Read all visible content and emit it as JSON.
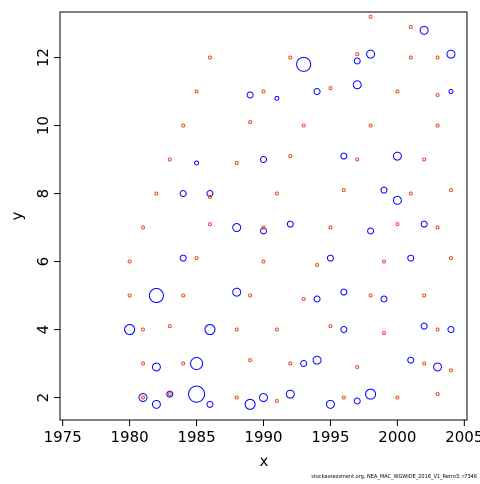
{
  "chart_data": {
    "type": "scatter",
    "xlabel": "x",
    "ylabel": "y",
    "footer": "stockassessment.org, NEA_MAC_WGWIDE_2016_V1_Retro3, r7346",
    "xlim": [
      1974.8,
      2005.2
    ],
    "ylim": [
      1.34,
      13.34
    ],
    "xticks": [
      1975,
      1980,
      1985,
      1990,
      1995,
      2000,
      2005
    ],
    "yticks": [
      2,
      4,
      6,
      8,
      10,
      12
    ],
    "series": [
      {
        "color": "#0000ff",
        "x": [
          1980,
          1981,
          1982,
          1982,
          1982,
          1983,
          1984,
          1984,
          1985,
          1985,
          1986,
          1986,
          1986,
          1988,
          1988,
          1989,
          1989,
          1990,
          1990,
          1991,
          1992,
          1993,
          1993,
          1994,
          1994,
          1995,
          1995,
          1996,
          1996,
          1997,
          1997,
          1998,
          1998,
          1998,
          1999,
          1999,
          2000,
          2000,
          2001,
          2001,
          2002,
          2002,
          2003,
          2004,
          2004,
          2004,
          1997,
          1990,
          1992,
          1985,
          1994,
          1996,
          2002
        ],
        "values": [
          4,
          2,
          5,
          1.8,
          2.9,
          2.1,
          6.1,
          8,
          2.1,
          3,
          4,
          1.8,
          8,
          5.1,
          7,
          1.8,
          10.9,
          9,
          2,
          10.8,
          2.1,
          11.8,
          3,
          3.1,
          11,
          1.8,
          6.1,
          4,
          9.1,
          11.9,
          11.2,
          12.1,
          2.1,
          6.9,
          8.1,
          4.9,
          9.1,
          7.8,
          6.1,
          3.1,
          12.8,
          7.1,
          2.9,
          12.1,
          4,
          11,
          1.9,
          6.9,
          7.1,
          8.9,
          4.9,
          5.1,
          4.1
        ],
        "sizes": [
          5,
          4,
          7,
          4,
          4,
          3,
          3,
          3,
          8,
          6,
          5,
          3,
          3,
          4,
          4,
          5,
          3,
          3,
          4,
          2,
          4,
          7,
          3,
          4,
          3,
          4,
          3,
          3,
          3,
          3,
          4,
          4,
          5,
          3,
          3,
          3,
          4,
          4,
          3,
          3,
          4,
          3,
          4,
          4,
          3,
          2,
          3,
          3,
          3,
          2,
          3,
          3,
          3
        ]
      },
      {
        "color": "#e8502a",
        "x": [
          1981,
          1983,
          1988,
          1991,
          1996,
          2000,
          2003,
          1981,
          1984,
          1989,
          1992,
          1997,
          2002,
          2004,
          1981,
          1983,
          1988,
          1991,
          1995,
          1999,
          2003,
          1980,
          1984,
          1989,
          1993,
          1998,
          2002,
          1980,
          1985,
          1990,
          1994,
          1999,
          2004,
          1981,
          1986,
          1990,
          1995,
          2000,
          2003,
          1982,
          1986,
          1991,
          1996,
          2001,
          2004,
          1983,
          1988,
          1992,
          1997,
          2002,
          1984,
          1989,
          1993,
          1998,
          2003,
          1985,
          1990,
          1995,
          2000,
          2003,
          1986,
          1992,
          1997,
          2001,
          2003,
          1998,
          2001
        ],
        "values": [
          2,
          2.1,
          2,
          1.9,
          2,
          2,
          2.1,
          3,
          3,
          3.1,
          3,
          2.9,
          3,
          2.8,
          4,
          4.1,
          4,
          4,
          4.1,
          3.9,
          4,
          5,
          5,
          5,
          4.9,
          5,
          5,
          6,
          6.1,
          6,
          5.9,
          6,
          6.1,
          7,
          7.1,
          7,
          7,
          7.1,
          7,
          8,
          7.9,
          8,
          8.1,
          8,
          8.1,
          9,
          8.9,
          9.1,
          9,
          9,
          10,
          10.1,
          10,
          10,
          10,
          11,
          11,
          11.1,
          11,
          10.9,
          12,
          12,
          12.1,
          12,
          12,
          13.2,
          12.9
        ],
        "sizes": [
          1.5,
          1.5,
          1.5,
          1.5,
          1.5,
          1.5,
          1.5,
          1.5,
          1.5,
          1.5,
          1.5,
          1.5,
          1.5,
          1.5,
          1.5,
          1.5,
          1.5,
          1.5,
          1.5,
          1.5,
          1.5,
          1.5,
          1.5,
          1.5,
          1.5,
          1.5,
          1.5,
          1.5,
          1.5,
          1.5,
          1.5,
          1.5,
          1.5,
          1.5,
          1.5,
          1.5,
          1.5,
          1.5,
          1.5,
          1.5,
          1.5,
          1.5,
          1.5,
          1.5,
          1.5,
          1.5,
          1.5,
          1.5,
          1.5,
          1.5,
          1.5,
          1.5,
          1.5,
          1.5,
          1.5,
          1.5,
          1.5,
          1.5,
          1.5,
          1.5,
          1.5,
          1.5,
          1.5,
          1.5,
          1.5,
          1.5,
          1.5
        ]
      }
    ]
  }
}
